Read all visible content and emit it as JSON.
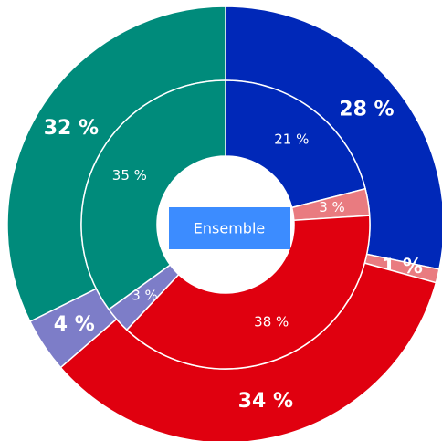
{
  "chart_data": {
    "type": "donut",
    "center_label": "Ensemble",
    "colors": [
      "#0028b8",
      "#e97b80",
      "#e0000f",
      "#7d7dc8",
      "#008b7b"
    ],
    "rings": [
      {
        "values": [
          28,
          1,
          34,
          4,
          32
        ],
        "value_labels": [
          "28 %",
          "1 %",
          "34 %",
          "4 %",
          "32 %"
        ]
      },
      {
        "values": [
          21,
          3,
          38,
          3,
          35
        ],
        "value_labels": [
          "21 %",
          "3 %",
          "38 %",
          "3 %",
          "35 %"
        ]
      }
    ]
  }
}
